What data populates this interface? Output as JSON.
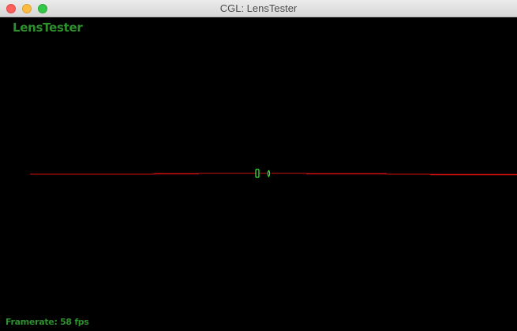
{
  "window": {
    "title": "CGL: LensTester"
  },
  "overlay": {
    "app_label": "LensTester",
    "framerate": "Framerate: 58 fps"
  },
  "colors": {
    "ray": "#e01010",
    "lens": "#33ee33",
    "label": "#2e8f2e",
    "background": "#000000"
  }
}
